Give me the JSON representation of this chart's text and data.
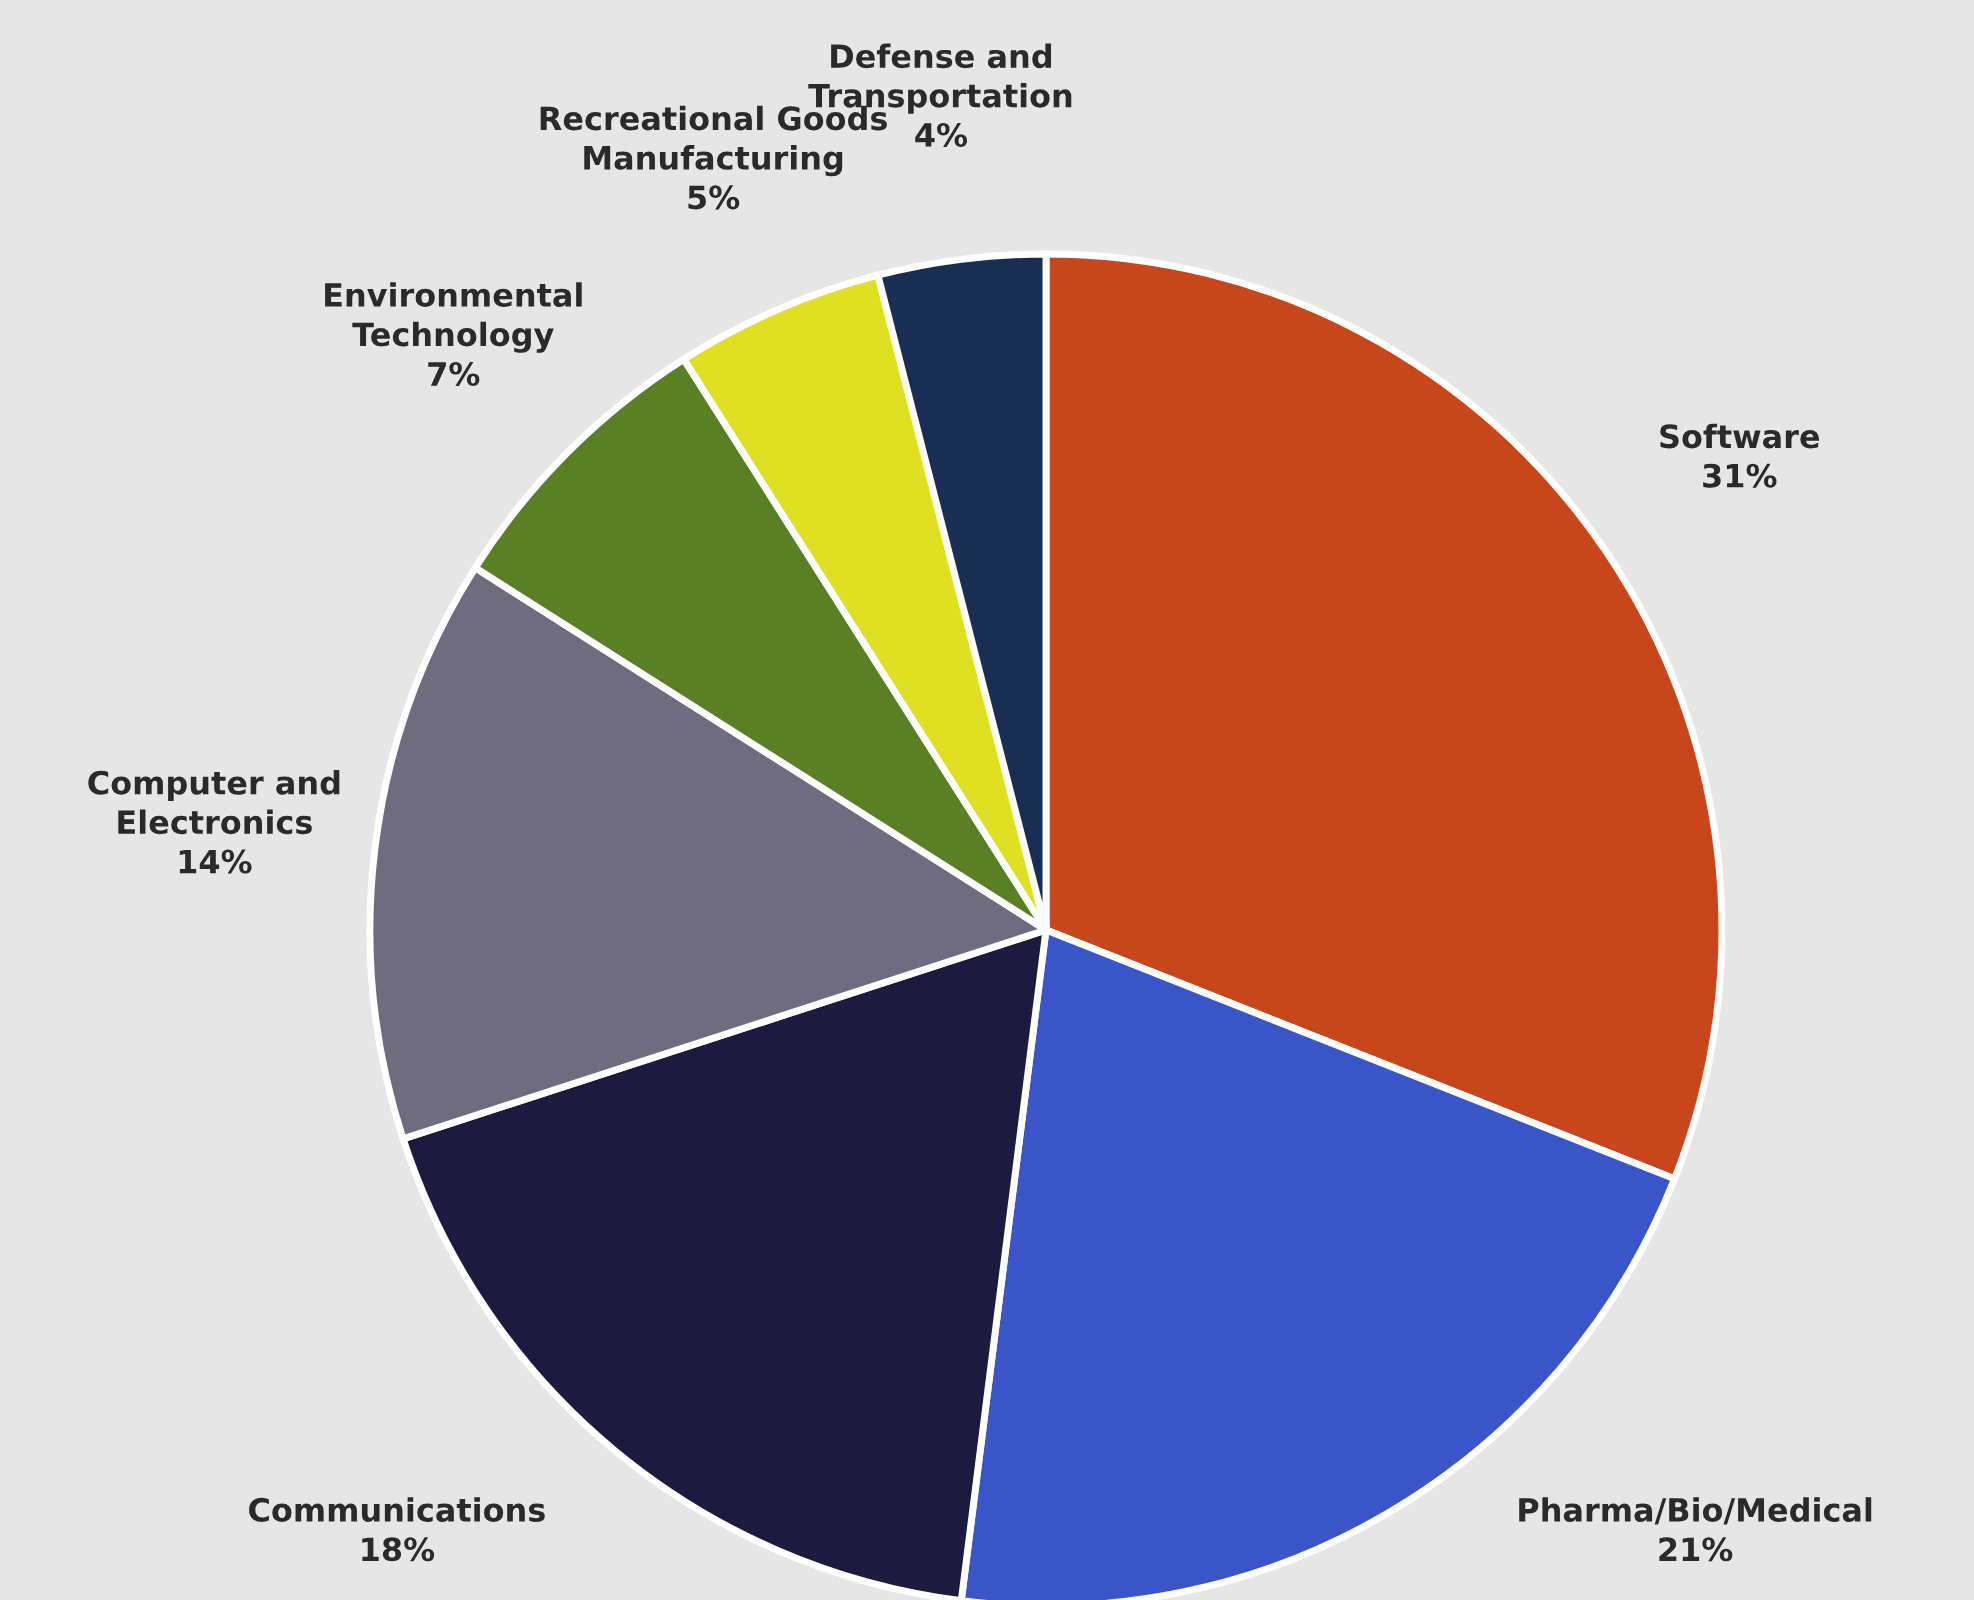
{
  "chart_data": {
    "type": "pie",
    "categories": [
      "Software",
      "Pharma/Bio/Medical",
      "Communications",
      "Computer and\nElectronics",
      "Environmental\nTechnology",
      "Recreational Goods\nManufacturing",
      "Defense and\nTransportation"
    ],
    "values": [
      31,
      21,
      18,
      14,
      7,
      5,
      4
    ],
    "value_labels": [
      "31%",
      "21%",
      "18%",
      "14%",
      "7%",
      "5%",
      "4%"
    ],
    "colors": [
      "#c8461c",
      "#3a55c8",
      "#1c1a3e",
      "#6e6c7e",
      "#5b7f25",
      "#e0e022",
      "#1a2d52"
    ],
    "legend": false
  }
}
